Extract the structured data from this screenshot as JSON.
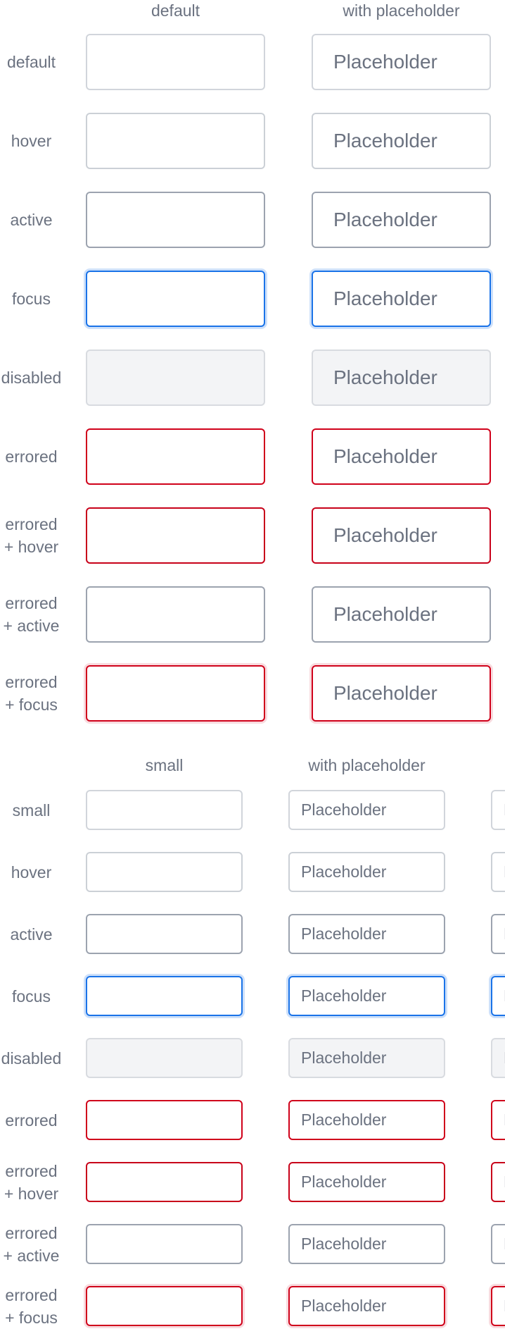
{
  "large": {
    "columns": [
      "default",
      "with placeholder"
    ],
    "placeholder": "Placeholder",
    "rows": [
      {
        "label": "default",
        "state": "default"
      },
      {
        "label": "hover",
        "state": "hover"
      },
      {
        "label": "active",
        "state": "active"
      },
      {
        "label": "focus",
        "state": "focus"
      },
      {
        "label": "disabled",
        "state": "disabled"
      },
      {
        "label": "errored",
        "state": "errored"
      },
      {
        "label": "errored\n+ hover",
        "state": "errored-hover"
      },
      {
        "label": "errored\n+ active",
        "state": "errored-active"
      },
      {
        "label": "errored\n+ focus",
        "state": "errored-focus"
      }
    ]
  },
  "small": {
    "columns": [
      "small",
      "with placeholder"
    ],
    "placeholder": "Placeholder",
    "rows": [
      {
        "label": "small",
        "state": "default"
      },
      {
        "label": "hover",
        "state": "hover"
      },
      {
        "label": "active",
        "state": "active"
      },
      {
        "label": "focus",
        "state": "focus"
      },
      {
        "label": "disabled",
        "state": "disabled"
      },
      {
        "label": "errored",
        "state": "errored"
      },
      {
        "label": "errored\n+ hover",
        "state": "errored-hover"
      },
      {
        "label": "errored\n+ active",
        "state": "errored-active"
      },
      {
        "label": "errored\n+ focus",
        "state": "errored-focus"
      }
    ]
  },
  "colors": {
    "label_text": "#6b7280",
    "border_default": "#d1d5db",
    "border_active": "#9ca3af",
    "focus_blue": "#1a73e8",
    "error_red": "#d0021b",
    "disabled_fill": "#f3f4f6"
  }
}
